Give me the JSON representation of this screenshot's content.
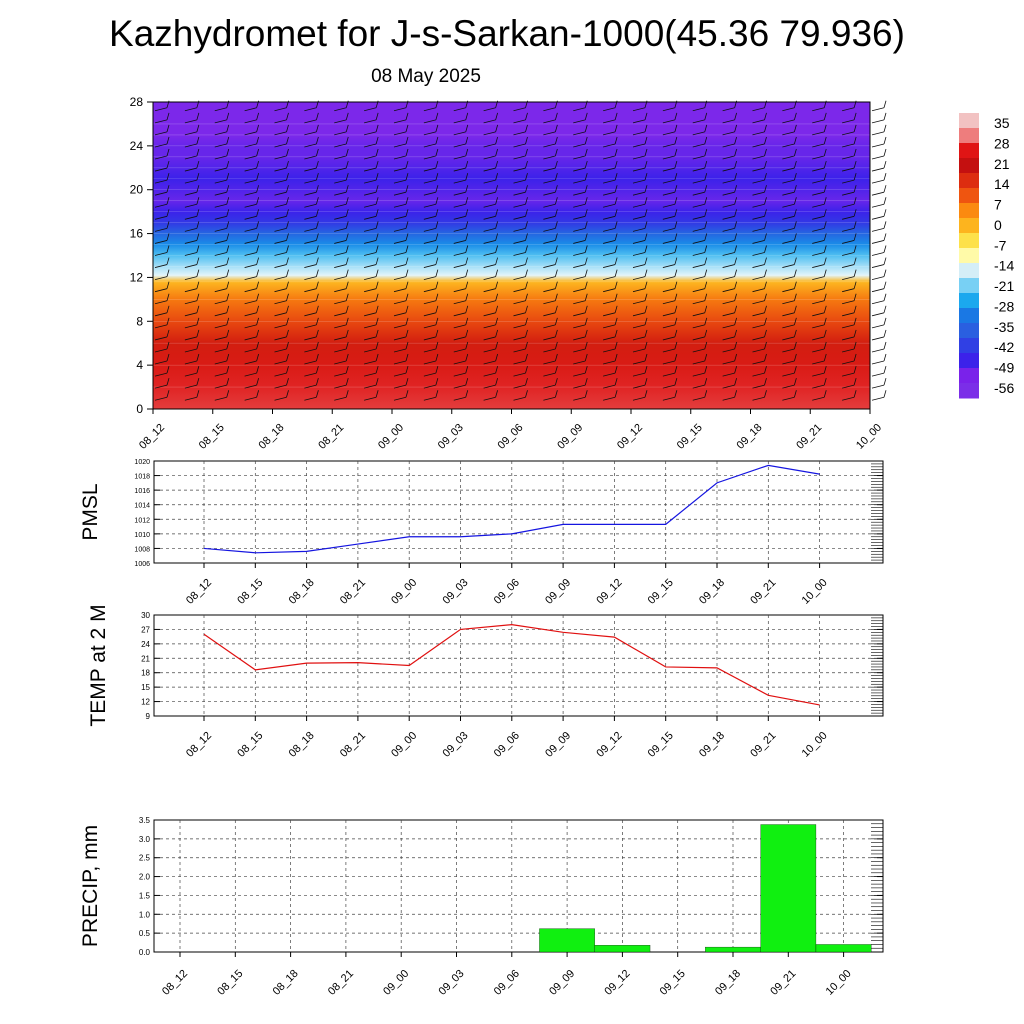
{
  "title": "Kazhydromet for J-s-Sarkan-1000(45.36 79.936)",
  "subtitle": "08 May 2025",
  "colorbar": {
    "labels": [
      "35",
      "28",
      "21",
      "14",
      "7",
      "0",
      "-7",
      "-14",
      "-21",
      "-28",
      "-35",
      "-42",
      "-49",
      "-56"
    ],
    "colors": [
      "#f2c2c2",
      "#ee7d7d",
      "#e01515",
      "#c41010",
      "#dd2d10",
      "#ef5510",
      "#fb8a10",
      "#fdb41e",
      "#fde14a",
      "#fffaa8",
      "#d4eef7",
      "#78d0f4",
      "#1ba8ee",
      "#1a78e4",
      "#2a5fe0",
      "#3040e4",
      "#3c22ea",
      "#7a22ea",
      "#7b2ee8"
    ]
  },
  "chart_data": [
    {
      "type": "heatmap",
      "title": "Kazhydromet for J-s-Sarkan-1000(45.36 79.936)",
      "subtitle": "08 May 2025",
      "x_categories": [
        "08_12",
        "08_15",
        "08_18",
        "08_21",
        "09_00",
        "09_03",
        "09_06",
        "09_09",
        "09_12",
        "09_15",
        "09_18",
        "09_21",
        "10_00"
      ],
      "y_ticks": [
        0,
        4,
        8,
        12,
        16,
        20,
        24,
        28
      ],
      "ylim": [
        0,
        28
      ],
      "value_scale_labels": [
        35,
        28,
        21,
        14,
        7,
        0,
        -7,
        -14,
        -21,
        -28,
        -35,
        -42,
        -49,
        -56
      ],
      "colorbar_position": "right",
      "profile_levels": [
        0,
        2,
        4,
        6,
        8,
        10,
        11.6,
        12.2,
        13,
        14,
        15,
        16,
        17,
        18,
        19,
        20,
        21,
        22,
        23,
        24,
        25,
        26,
        28
      ],
      "profile_values": [
        24,
        22,
        18,
        14,
        8,
        2,
        -6,
        -14,
        -18,
        -24,
        -32,
        -40,
        -50,
        -56,
        -60,
        -58,
        -56,
        -58,
        -60,
        -60,
        -62,
        -62,
        -62
      ],
      "overlay": "wind barbs"
    },
    {
      "type": "line",
      "ylabel": "PMSL",
      "x": [
        "08_12",
        "08_15",
        "08_18",
        "08_21",
        "09_00",
        "09_03",
        "09_06",
        "09_09",
        "09_12",
        "09_15",
        "09_18",
        "09_21",
        "10_00"
      ],
      "series": [
        {
          "values": [
            1008.0,
            1007.4,
            1007.6,
            1008.6,
            1009.6,
            1009.6,
            1010.0,
            1011.3,
            1011.3,
            1011.3,
            1017.0,
            1019.4,
            1018.2
          ],
          "color": "#1515e0"
        }
      ],
      "ylim": [
        1006,
        1020
      ],
      "y_ticks": [
        1006,
        1008,
        1010,
        1012,
        1014,
        1016,
        1018,
        1020
      ],
      "grid": true
    },
    {
      "type": "line",
      "ylabel": "TEMP at 2 M",
      "x": [
        "08_12",
        "08_15",
        "08_18",
        "08_21",
        "09_00",
        "09_03",
        "09_06",
        "09_09",
        "09_12",
        "09_15",
        "09_18",
        "09_21",
        "10_00"
      ],
      "series": [
        {
          "values": [
            26.0,
            18.6,
            20.0,
            20.1,
            19.5,
            27.0,
            28.0,
            26.4,
            25.4,
            19.2,
            19.0,
            13.3,
            11.3
          ],
          "color": "#e01010"
        }
      ],
      "ylim": [
        9,
        30
      ],
      "y_ticks": [
        9,
        12,
        15,
        18,
        21,
        24,
        27,
        30
      ],
      "grid": true
    },
    {
      "type": "bar",
      "ylabel": "PRECIP, mm",
      "categories": [
        "08_12",
        "08_15",
        "08_18",
        "08_21",
        "09_00",
        "09_03",
        "09_06",
        "09_09",
        "09_12",
        "09_15",
        "09_18",
        "09_21",
        "10_00"
      ],
      "values": [
        0,
        0,
        0,
        0,
        0,
        0,
        0,
        0.62,
        0.18,
        0,
        0.13,
        3.38,
        0.2
      ],
      "ylim": [
        0,
        3.5
      ],
      "y_ticks": [
        "0.0",
        "0.5",
        "1.0",
        "1.5",
        "2.0",
        "2.5",
        "3.0",
        "3.5"
      ],
      "bar_color": "#10f010",
      "grid": true
    }
  ]
}
